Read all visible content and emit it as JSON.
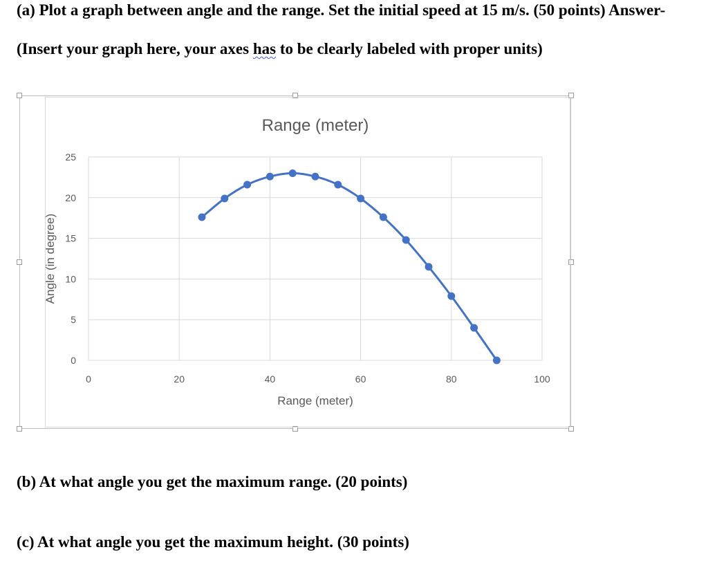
{
  "questions": {
    "a_title": "(a) Plot a graph between angle and the range. Set the initial speed at 15 m/s. (50 points) Answer-",
    "a_note_before": "(Insert your graph here, your axes ",
    "a_note_squiggle": "has",
    "a_note_after": " to be clearly labeled with proper units)",
    "b": "(b) At what angle you get the maximum range. (20 points)",
    "c": "(c) At what angle you get the maximum height. (30 points)"
  },
  "chart_data": {
    "type": "scatter",
    "title": "Range (meter)",
    "xlabel": "Range (meter)",
    "ylabel": "Angle (in degree)",
    "xlim": [
      0,
      100
    ],
    "ylim": [
      0,
      25
    ],
    "xticks": [
      "0",
      "20",
      "40",
      "60",
      "80",
      "100"
    ],
    "yticks": [
      "0",
      "5",
      "10",
      "15",
      "20",
      "25"
    ],
    "grid": true,
    "legend": "none",
    "smoothed_line": true,
    "series": [
      {
        "color": "#4472c4",
        "points": [
          [
            25,
            17.6
          ],
          [
            30,
            19.9
          ],
          [
            35,
            21.6
          ],
          [
            40,
            22.6
          ],
          [
            45,
            23.0
          ],
          [
            50,
            22.6
          ],
          [
            55,
            21.6
          ],
          [
            60,
            19.9
          ],
          [
            65,
            17.6
          ],
          [
            70,
            14.8
          ],
          [
            75,
            11.5
          ],
          [
            80,
            7.9
          ],
          [
            85,
            4.0
          ],
          [
            90,
            0.0
          ]
        ]
      }
    ]
  }
}
